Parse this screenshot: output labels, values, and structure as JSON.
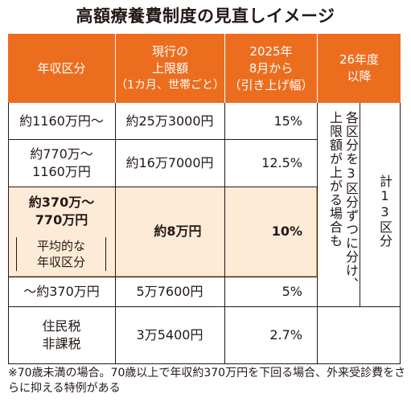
{
  "title": "高額療養費制度の見直しイメージ",
  "header": {
    "col1": "年収区分",
    "col2": [
      "現行の",
      "上限額",
      "（1カ月、世帯ごと）"
    ],
    "col3": [
      "2025年",
      "8月から",
      "（引き上げ幅）"
    ],
    "col4": [
      "26年度",
      "以降"
    ]
  },
  "rows": [
    {
      "income": [
        "約1160万円～"
      ],
      "limit": "約25万3000円",
      "increase": "15%"
    },
    {
      "income": [
        "約770万～",
        "1160万円"
      ],
      "limit": "約16万7000円",
      "increase": "12.5%"
    },
    {
      "income": [
        "約370万～",
        "770万円"
      ],
      "income_note": [
        "平均的な",
        "年収区分"
      ],
      "limit": "約8万円",
      "increase": "10%"
    },
    {
      "income": [
        "～約370万円"
      ],
      "limit": "5万7600円",
      "increase": "5%"
    },
    {
      "income": [
        "住民税",
        "非課税"
      ],
      "limit": "3万5400円",
      "increase": "2.7%"
    }
  ],
  "future": {
    "col_a": [
      "各区分を3区分ずつに分け、",
      "上限額が上がる場合も"
    ],
    "col_b": "計13区分"
  },
  "footnote": "※70歳未満の場合。70歳以上で年収約370万円を下回る場合、外来受診費をさらに抑える特例がある",
  "colors": {
    "header": "#ed6d1f",
    "highlight": "#fdebd8",
    "highlight_border": "#ef9a4e"
  }
}
